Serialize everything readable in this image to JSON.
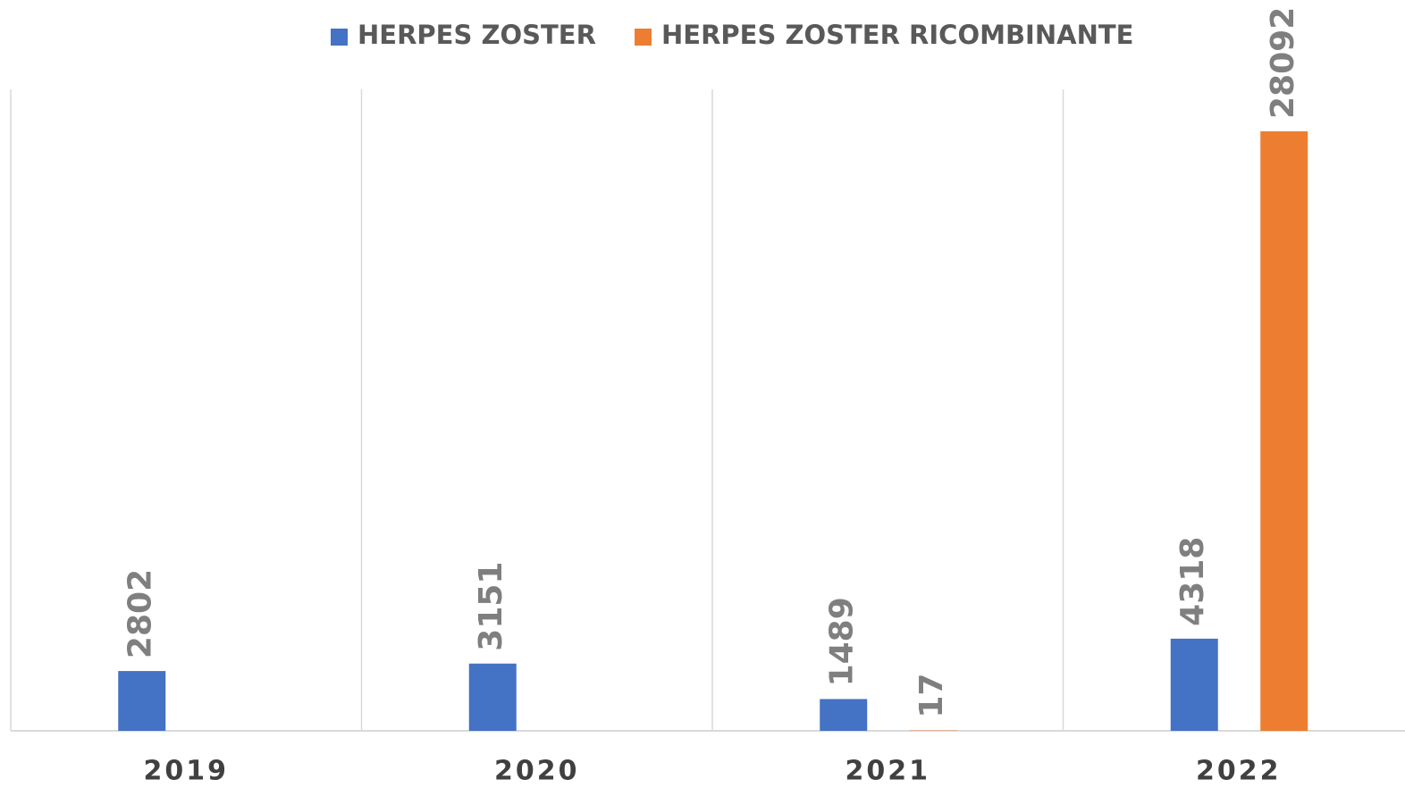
{
  "chart_data": {
    "type": "bar",
    "categories": [
      "2019",
      "2020",
      "2021",
      "2022"
    ],
    "series": [
      {
        "name": "HERPES ZOSTER",
        "color": "#4472c4",
        "values": [
          2802,
          3151,
          1489,
          4318
        ]
      },
      {
        "name": "HERPES ZOSTER RICOMBINANTE",
        "color": "#ed7d31",
        "values": [
          null,
          null,
          17,
          28092
        ]
      }
    ],
    "legend": "top"
  }
}
